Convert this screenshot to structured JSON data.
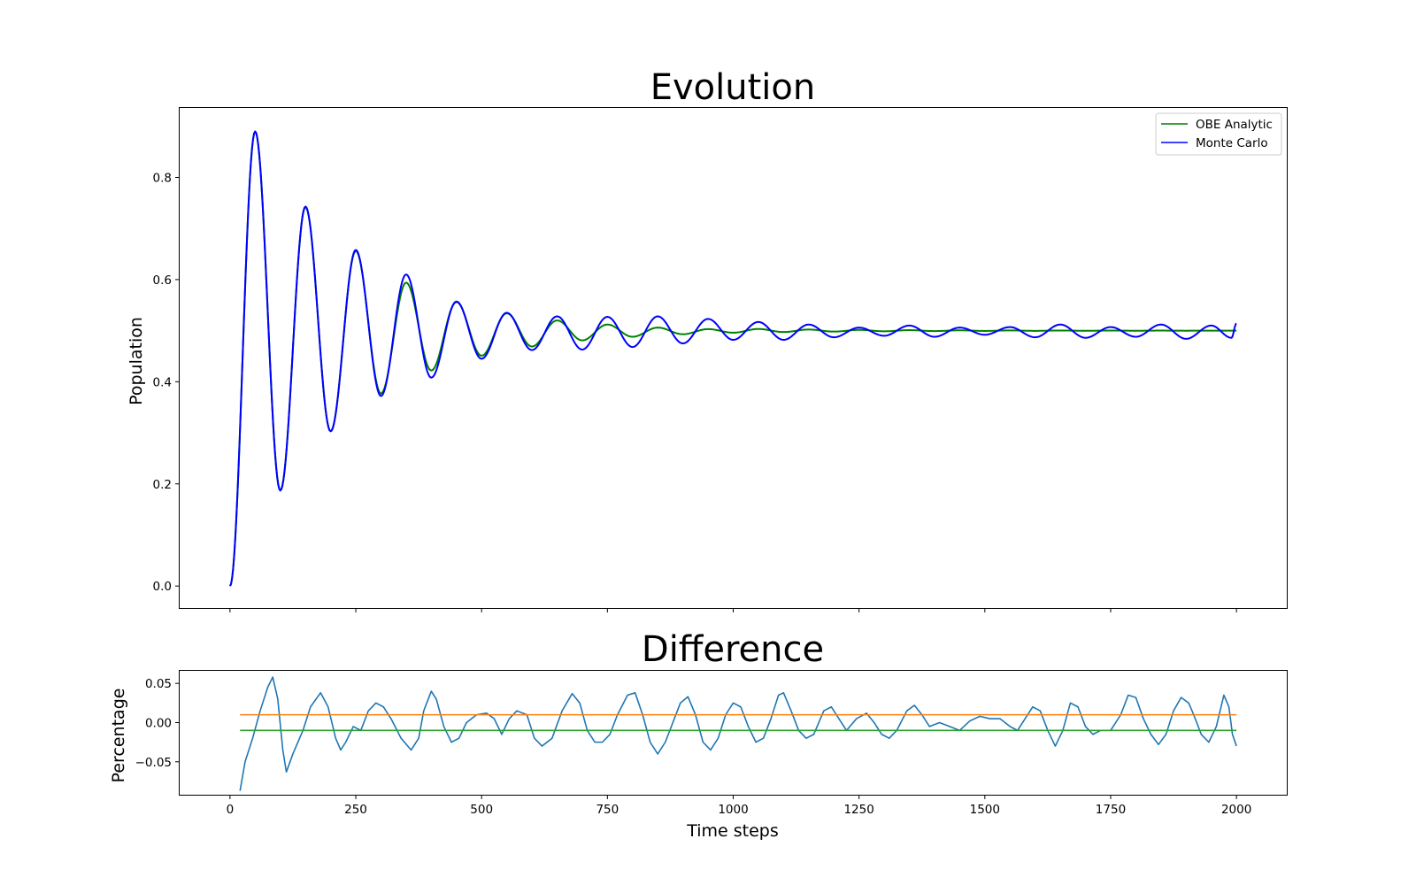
{
  "figure": {
    "background": "#ffffff"
  },
  "chart_data": [
    {
      "type": "line",
      "title": "Evolution",
      "xlabel": "",
      "ylabel": "Population",
      "xlim": [
        -100,
        2100
      ],
      "ylim": [
        -0.043,
        0.936
      ],
      "xticks": [
        0,
        250,
        500,
        750,
        1000,
        1250,
        1500,
        1750,
        2000
      ],
      "xtick_labels_visible": false,
      "yticks": [
        0.0,
        0.2,
        0.4,
        0.6,
        0.8
      ],
      "ytick_labels": [
        "0.0",
        "0.2",
        "0.4",
        "0.6",
        "0.8"
      ],
      "grid": false,
      "legend_placement": "top-right",
      "series": [
        {
          "name": "OBE Analytic",
          "color": "#008000",
          "model": "damped_oscillation",
          "equilibrium": 0.5,
          "period": 100,
          "x_range": [
            0,
            2000
          ],
          "peaks": [
            [
              50,
              0.89
            ],
            [
              150,
              0.742
            ],
            [
              250,
              0.656
            ],
            [
              350,
              0.594
            ],
            [
              450,
              0.556
            ],
            [
              550,
              0.534
            ],
            [
              650,
              0.52
            ],
            [
              750,
              0.512
            ],
            [
              850,
              0.506
            ],
            [
              950,
              0.503
            ]
          ],
          "troughs": [
            [
              100,
              0.187
            ],
            [
              200,
              0.303
            ],
            [
              300,
              0.377
            ],
            [
              400,
              0.422
            ],
            [
              500,
              0.451
            ],
            [
              600,
              0.469
            ],
            [
              700,
              0.481
            ],
            [
              800,
              0.488
            ],
            [
              900,
              0.493
            ],
            [
              1000,
              0.496
            ]
          ]
        },
        {
          "name": "Monte Carlo",
          "color": "#0000ff",
          "model": "damped_oscillation_with_noise",
          "equilibrium": 0.5,
          "period": 100,
          "x_range": [
            0,
            2000
          ],
          "peaks": [
            [
              50,
              0.89
            ],
            [
              150,
              0.743
            ],
            [
              250,
              0.658
            ],
            [
              350,
              0.61
            ],
            [
              450,
              0.557
            ],
            [
              550,
              0.535
            ],
            [
              650,
              0.528
            ],
            [
              750,
              0.527
            ],
            [
              850,
              0.528
            ],
            [
              950,
              0.523
            ],
            [
              1050,
              0.517
            ],
            [
              1150,
              0.512
            ],
            [
              1250,
              0.506
            ],
            [
              1350,
              0.51
            ],
            [
              1450,
              0.506
            ],
            [
              1550,
              0.507
            ],
            [
              1650,
              0.512
            ],
            [
              1750,
              0.507
            ],
            [
              1850,
              0.512
            ],
            [
              1950,
              0.51
            ]
          ],
          "troughs": [
            [
              100,
              0.187
            ],
            [
              200,
              0.303
            ],
            [
              300,
              0.372
            ],
            [
              400,
              0.408
            ],
            [
              500,
              0.445
            ],
            [
              600,
              0.462
            ],
            [
              700,
              0.463
            ],
            [
              800,
              0.468
            ],
            [
              900,
              0.475
            ],
            [
              1000,
              0.482
            ],
            [
              1100,
              0.482
            ],
            [
              1200,
              0.487
            ],
            [
              1300,
              0.49
            ],
            [
              1400,
              0.488
            ],
            [
              1500,
              0.492
            ],
            [
              1600,
              0.487
            ],
            [
              1700,
              0.486
            ],
            [
              1800,
              0.488
            ],
            [
              1900,
              0.484
            ],
            [
              1990,
              0.486
            ]
          ],
          "end_value": [
            2000,
            0.514
          ]
        }
      ]
    },
    {
      "type": "line",
      "title": "Difference",
      "xlabel": "Time steps",
      "ylabel": "Percentage",
      "xlim": [
        -100,
        2100
      ],
      "ylim": [
        -0.092,
        0.066
      ],
      "xticks": [
        0,
        250,
        500,
        750,
        1000,
        1250,
        1500,
        1750,
        2000
      ],
      "xtick_labels": [
        "0",
        "250",
        "500",
        "750",
        "1000",
        "1250",
        "1500",
        "1750",
        "2000"
      ],
      "yticks": [
        -0.05,
        0.0,
        0.05
      ],
      "ytick_labels": [
        "−0.05",
        "0.00",
        "0.05"
      ],
      "grid": false,
      "series": [
        {
          "color": "#1f77b4",
          "x_range": [
            20,
            2000
          ],
          "points": [
            [
              20,
              -0.087
            ],
            [
              30,
              -0.05
            ],
            [
              45,
              -0.02
            ],
            [
              60,
              0.015
            ],
            [
              75,
              0.045
            ],
            [
              85,
              0.058
            ],
            [
              95,
              0.03
            ],
            [
              105,
              -0.035
            ],
            [
              112,
              -0.063
            ],
            [
              125,
              -0.04
            ],
            [
              145,
              -0.01
            ],
            [
              160,
              0.02
            ],
            [
              180,
              0.038
            ],
            [
              195,
              0.02
            ],
            [
              210,
              -0.02
            ],
            [
              220,
              -0.035
            ],
            [
              230,
              -0.025
            ],
            [
              245,
              -0.005
            ],
            [
              260,
              -0.01
            ],
            [
              275,
              0.015
            ],
            [
              290,
              0.025
            ],
            [
              305,
              0.02
            ],
            [
              320,
              0.005
            ],
            [
              340,
              -0.02
            ],
            [
              360,
              -0.035
            ],
            [
              375,
              -0.02
            ],
            [
              385,
              0.015
            ],
            [
              400,
              0.04
            ],
            [
              410,
              0.03
            ],
            [
              425,
              -0.005
            ],
            [
              440,
              -0.025
            ],
            [
              455,
              -0.02
            ],
            [
              470,
              0.0
            ],
            [
              490,
              0.01
            ],
            [
              510,
              0.012
            ],
            [
              525,
              0.005
            ],
            [
              540,
              -0.015
            ],
            [
              555,
              0.005
            ],
            [
              570,
              0.015
            ],
            [
              590,
              0.01
            ],
            [
              605,
              -0.02
            ],
            [
              620,
              -0.03
            ],
            [
              640,
              -0.02
            ],
            [
              660,
              0.015
            ],
            [
              680,
              0.037
            ],
            [
              695,
              0.025
            ],
            [
              710,
              -0.01
            ],
            [
              725,
              -0.025
            ],
            [
              740,
              -0.025
            ],
            [
              755,
              -0.015
            ],
            [
              770,
              0.01
            ],
            [
              790,
              0.035
            ],
            [
              805,
              0.038
            ],
            [
              820,
              0.01
            ],
            [
              835,
              -0.025
            ],
            [
              850,
              -0.04
            ],
            [
              865,
              -0.025
            ],
            [
              880,
              0.0
            ],
            [
              895,
              0.025
            ],
            [
              910,
              0.033
            ],
            [
              925,
              0.01
            ],
            [
              940,
              -0.025
            ],
            [
              955,
              -0.035
            ],
            [
              970,
              -0.02
            ],
            [
              985,
              0.01
            ],
            [
              1000,
              0.025
            ],
            [
              1015,
              0.02
            ],
            [
              1030,
              -0.005
            ],
            [
              1045,
              -0.025
            ],
            [
              1060,
              -0.02
            ],
            [
              1075,
              0.005
            ],
            [
              1090,
              0.035
            ],
            [
              1100,
              0.038
            ],
            [
              1115,
              0.015
            ],
            [
              1130,
              -0.01
            ],
            [
              1145,
              -0.02
            ],
            [
              1160,
              -0.015
            ],
            [
              1180,
              0.015
            ],
            [
              1195,
              0.02
            ],
            [
              1210,
              0.005
            ],
            [
              1225,
              -0.01
            ],
            [
              1245,
              0.005
            ],
            [
              1265,
              0.012
            ],
            [
              1280,
              0.0
            ],
            [
              1295,
              -0.015
            ],
            [
              1310,
              -0.02
            ],
            [
              1325,
              -0.01
            ],
            [
              1345,
              0.015
            ],
            [
              1360,
              0.022
            ],
            [
              1375,
              0.01
            ],
            [
              1390,
              -0.005
            ],
            [
              1410,
              0.0
            ],
            [
              1430,
              -0.005
            ],
            [
              1450,
              -0.01
            ],
            [
              1470,
              0.002
            ],
            [
              1490,
              0.008
            ],
            [
              1510,
              0.005
            ],
            [
              1530,
              0.005
            ],
            [
              1550,
              -0.005
            ],
            [
              1565,
              -0.01
            ],
            [
              1580,
              0.005
            ],
            [
              1595,
              0.02
            ],
            [
              1610,
              0.015
            ],
            [
              1625,
              -0.01
            ],
            [
              1640,
              -0.03
            ],
            [
              1655,
              -0.01
            ],
            [
              1670,
              0.025
            ],
            [
              1685,
              0.02
            ],
            [
              1700,
              -0.005
            ],
            [
              1715,
              -0.015
            ],
            [
              1730,
              -0.01
            ],
            [
              1750,
              -0.01
            ],
            [
              1770,
              0.01
            ],
            [
              1785,
              0.035
            ],
            [
              1800,
              0.032
            ],
            [
              1815,
              0.005
            ],
            [
              1830,
              -0.015
            ],
            [
              1845,
              -0.028
            ],
            [
              1860,
              -0.015
            ],
            [
              1875,
              0.015
            ],
            [
              1890,
              0.032
            ],
            [
              1905,
              0.025
            ],
            [
              1915,
              0.01
            ],
            [
              1930,
              -0.015
            ],
            [
              1945,
              -0.025
            ],
            [
              1960,
              -0.005
            ],
            [
              1975,
              0.035
            ],
            [
              1985,
              0.02
            ],
            [
              1992,
              -0.015
            ],
            [
              2000,
              -0.03
            ]
          ]
        },
        {
          "color": "#ff7f0e",
          "points": [
            [
              20,
              0.01
            ],
            [
              2000,
              0.01
            ]
          ]
        },
        {
          "color": "#2ca02c",
          "points": [
            [
              20,
              -0.01
            ],
            [
              2000,
              -0.01
            ]
          ]
        }
      ]
    }
  ]
}
